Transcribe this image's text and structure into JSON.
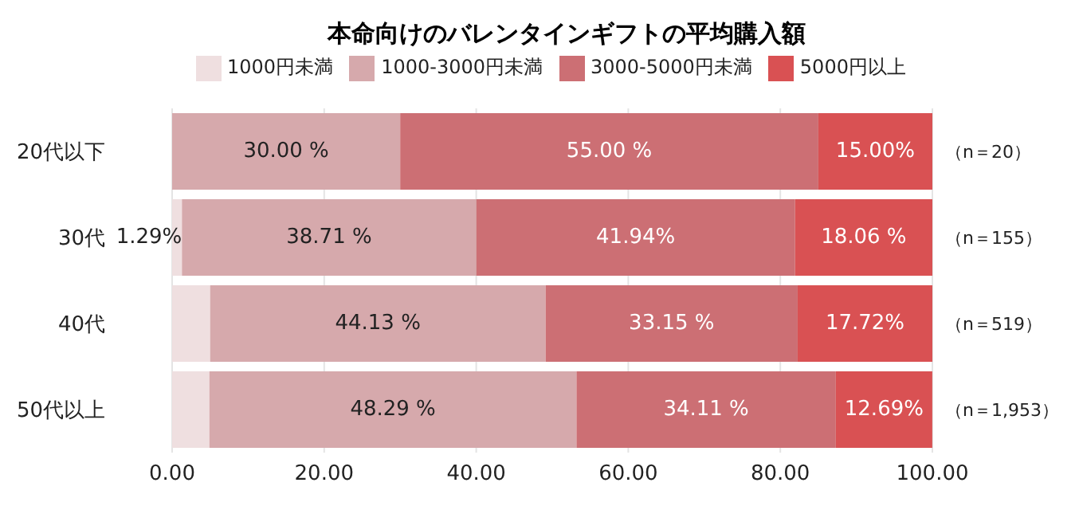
{
  "chart_data": {
    "type": "bar",
    "orientation": "horizontal",
    "stacked": true,
    "title": "本命向けのバレンタインギフトの平均購入額",
    "categories": [
      "20代以下",
      "30代",
      "40代",
      "50代以上"
    ],
    "series": [
      {
        "name": "1000円未満",
        "color": "#efdfe0",
        "values": [
          0,
          1.29,
          5,
          4.9
        ],
        "value_labels": [
          null,
          "1.29%",
          null,
          null
        ]
      },
      {
        "name": "1000-3000円未満",
        "color": "#d6a9ac",
        "values": [
          30.0,
          38.71,
          44.13,
          48.29
        ],
        "value_labels": [
          "30.00 %",
          "38.71 %",
          "44.13 %",
          "48.29 %"
        ]
      },
      {
        "name": "3000-5000円未満",
        "color": "#cc6f74",
        "values": [
          55.0,
          41.94,
          33.15,
          34.11
        ],
        "value_labels": [
          "55.00 %",
          "41.94%",
          "33.15 %",
          "34.11 %"
        ]
      },
      {
        "name": "5000円以上",
        "color": "#d95153",
        "values": [
          15.0,
          18.06,
          17.72,
          12.69
        ],
        "value_labels": [
          "15.00%",
          "18.06 %",
          "17.72%",
          "12.69%"
        ]
      }
    ],
    "xlim": [
      0,
      100
    ],
    "xticks": [
      {
        "value": 0,
        "label": "0.00"
      },
      {
        "value": 20,
        "label": "20.00"
      },
      {
        "value": 40,
        "label": "40.00"
      },
      {
        "value": 60,
        "label": "60.00"
      },
      {
        "value": 80,
        "label": "80.00"
      },
      {
        "value": 100,
        "label": "100.00"
      }
    ],
    "annotations": [
      "（n＝20）",
      "（n＝155）",
      "（n＝519）",
      "（n＝1,953）"
    ],
    "grid": "x",
    "legend": "top"
  }
}
